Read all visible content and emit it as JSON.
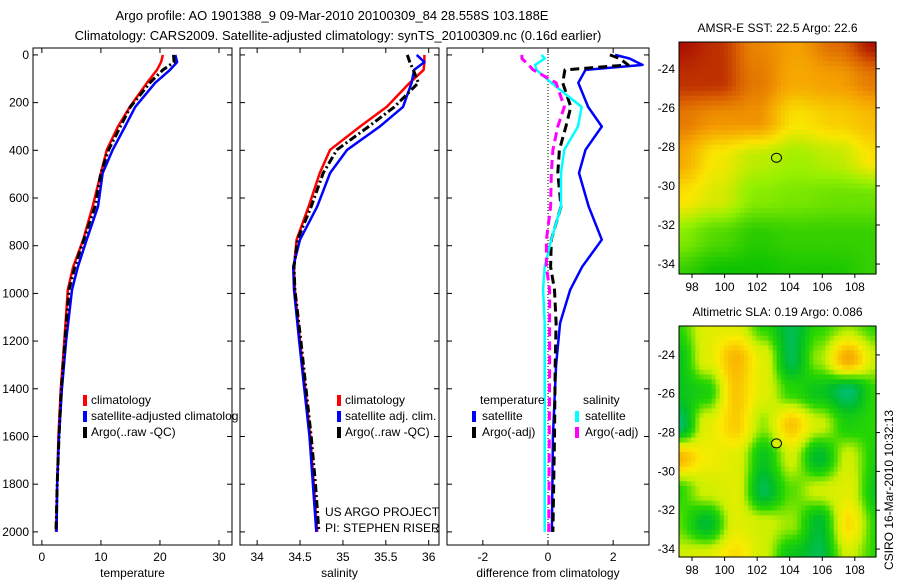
{
  "figure": {
    "title_line1": "Argo profile: AO 1901388_9 09-Mar-2010 20100309_84 28.558S 103.188E",
    "title_line2": "Climatology: CARS2009. Satellite-adjusted climatology: synTS_20100309.nc (0.16d earlier)",
    "side_stamp": "CSIRO 16-Mar-2010 10:32:13",
    "colors": {
      "climatology": "#ff0000",
      "satellite": "#0000ff",
      "argo": "#000000",
      "sal_satellite": "#00ffff",
      "sal_argo": "#ff00ff"
    }
  },
  "chart_data": [
    {
      "type": "line",
      "id": "temperature",
      "xlabel": "temperature",
      "ylabel": "",
      "xlim": [
        -1.5,
        32.2
      ],
      "ylim": [
        2055,
        -29
      ],
      "xticks": [
        0,
        10,
        20,
        30
      ],
      "yticks": [
        0,
        200,
        400,
        600,
        800,
        1000,
        1200,
        1400,
        1600,
        1800,
        2000
      ],
      "show_ytick_labels": true,
      "depth": [
        0,
        30,
        63,
        117,
        218,
        300,
        398,
        495,
        636,
        775,
        888,
        985,
        1200,
        1400,
        1600,
        1800,
        2000
      ],
      "series": [
        {
          "name": "climatology",
          "color": "#ff0000",
          "style": "solid",
          "values": [
            20.5,
            20.2,
            19.5,
            17.8,
            14.9,
            12.9,
            11.0,
            10.0,
            8.6,
            7.0,
            5.3,
            4.4,
            3.8,
            3.2,
            2.8,
            2.6,
            2.4
          ]
        },
        {
          "name": "satellite-adjusted climatology",
          "color": "#0000ff",
          "style": "solid",
          "values": [
            22.6,
            22.9,
            21.7,
            19.2,
            15.8,
            14.1,
            12.0,
            10.3,
            9.5,
            7.6,
            6.1,
            5.1,
            4.1,
            3.4,
            2.9,
            2.6,
            2.5
          ]
        },
        {
          "name": "Argo(..raw -QC)",
          "color": "#000000",
          "style": "dashdot",
          "values": [
            22.3,
            22.4,
            20.5,
            18.3,
            15.0,
            13.3,
            11.3,
            10.0,
            9.0,
            7.1,
            5.6,
            4.6,
            3.9,
            3.3,
            2.9,
            2.6,
            2.4
          ]
        }
      ],
      "legend": {
        "placement": "lower-middle",
        "entries": [
          "climatology",
          "satellite-adjusted climatolog",
          "Argo(..raw -QC)"
        ]
      }
    },
    {
      "type": "line",
      "id": "salinity",
      "xlabel": "salinity",
      "ylabel": "",
      "xlim": [
        33.8,
        36.12
      ],
      "ylim": [
        2055,
        -29
      ],
      "xticks": [
        34,
        34.5,
        35,
        35.5,
        36
      ],
      "yticks": [
        0,
        200,
        400,
        600,
        800,
        1000,
        1200,
        1400,
        1600,
        1800,
        2000
      ],
      "show_ytick_labels": false,
      "depth": [
        0,
        30,
        63,
        117,
        218,
        300,
        398,
        495,
        636,
        775,
        888,
        985,
        1200,
        1400,
        1600,
        1800,
        2000
      ],
      "series": [
        {
          "name": "climatology",
          "color": "#ff0000",
          "style": "solid",
          "values": [
            35.95,
            35.95,
            35.94,
            35.78,
            35.51,
            35.2,
            34.85,
            34.73,
            34.6,
            34.46,
            34.43,
            34.44,
            34.5,
            34.56,
            34.62,
            34.66,
            34.7
          ]
        },
        {
          "name": "satellite adj. clim.",
          "color": "#0000ff",
          "style": "solid",
          "values": [
            35.86,
            35.95,
            35.83,
            35.8,
            35.7,
            35.43,
            35.05,
            34.85,
            34.7,
            34.5,
            34.42,
            34.43,
            34.49,
            34.55,
            34.61,
            34.65,
            34.69
          ]
        },
        {
          "name": "Argo(..raw -QC)",
          "color": "#000000",
          "style": "dashdot",
          "values": [
            35.75,
            35.78,
            35.82,
            35.88,
            35.6,
            35.3,
            34.93,
            34.77,
            34.63,
            34.47,
            34.43,
            34.44,
            34.51,
            34.57,
            34.63,
            34.68,
            34.72
          ]
        }
      ],
      "legend": {
        "placement": "lower-middle",
        "entries": [
          "climatology",
          "satellite adj. clim.",
          "Argo(..raw -QC)"
        ]
      },
      "annotations": [
        "US ARGO PROJECT",
        "PI: STEPHEN RISER"
      ]
    },
    {
      "type": "line",
      "id": "difference",
      "xlabel": "difference from climatology",
      "ylabel": "",
      "xlim": [
        -3.1,
        3.1
      ],
      "ylim": [
        2055,
        -29
      ],
      "xticks": [
        -2,
        0,
        2
      ],
      "yticks": [
        0,
        200,
        400,
        600,
        800,
        1000,
        1200,
        1400,
        1600,
        1800,
        2000
      ],
      "show_ytick_labels": false,
      "depth": [
        0,
        15,
        42,
        63,
        117,
        218,
        300,
        398,
        495,
        636,
        775,
        888,
        985,
        1124,
        1300,
        1600,
        2000
      ],
      "series": [
        {
          "name": "temperature satellite",
          "color": "#0000ff",
          "style": "solid",
          "values": [
            2.06,
            2.5,
            2.9,
            1.15,
            0.93,
            1.23,
            1.65,
            1.15,
            0.95,
            1.25,
            1.65,
            1.05,
            0.68,
            0.37,
            0.25,
            0.15,
            0.12
          ]
        },
        {
          "name": "temperature Argo(-adj)",
          "color": "#000000",
          "style": "dashed",
          "values": [
            1.9,
            2.2,
            2.46,
            0.52,
            0.45,
            0.7,
            0.55,
            0.35,
            0.3,
            0.4,
            0.1,
            0.08,
            0.2,
            0.25,
            0.22,
            0.2,
            0.15
          ]
        },
        {
          "name": "salinity satellite",
          "color": "#00ffff",
          "style": "solid",
          "values": [
            -0.2,
            -0.1,
            -0.4,
            -0.35,
            0.1,
            1.03,
            0.92,
            0.5,
            0.4,
            0.4,
            0.1,
            -0.1,
            -0.15,
            -0.1,
            -0.1,
            -0.1,
            -0.1
          ]
        },
        {
          "name": "salinity Argo(-adj)",
          "color": "#ff00ff",
          "style": "dashed",
          "values": [
            -0.8,
            -0.8,
            -0.6,
            -0.45,
            0.25,
            0.5,
            0.3,
            0.15,
            0.1,
            0.08,
            -0.05,
            -0.05,
            0.05,
            0.05,
            0.05,
            0.04,
            0.02
          ]
        }
      ],
      "legend": {
        "placement": "lower-middle",
        "groups": [
          {
            "title": "temperature",
            "entries": [
              "satellite",
              "Argo(-adj)"
            ]
          },
          {
            "title": "salinity",
            "entries": [
              "satellite",
              "Argo(-adj)"
            ]
          }
        ]
      },
      "zero_line": 0
    },
    {
      "type": "heatmap",
      "id": "sst-map",
      "title": "AMSR-E SST: 22.5 Argo: 22.6",
      "xlim": [
        97.2,
        109.3
      ],
      "ylim": [
        -34.51,
        -22.63
      ],
      "xticks": [
        98,
        100,
        102,
        104,
        106,
        108
      ],
      "yticks": [
        -24,
        -26,
        -28,
        -30,
        -32,
        -34
      ],
      "grid_lon": [
        97.2,
        99.6,
        102.0,
        104.4,
        106.8,
        109.3
      ],
      "grid_lat": [
        -22.6,
        -24.6,
        -26.6,
        -28.6,
        -30.6,
        -32.6,
        -34.5
      ],
      "values": [
        [
          25.0,
          24.8,
          24.2,
          24.0,
          24.4,
          25.0
        ],
        [
          24.8,
          24.8,
          24.3,
          23.9,
          24.0,
          24.3
        ],
        [
          24.3,
          24.1,
          24.1,
          23.3,
          23.5,
          23.7
        ],
        [
          23.9,
          23.2,
          22.8,
          22.6,
          22.8,
          23.3
        ],
        [
          23.3,
          23.0,
          22.4,
          22.3,
          22.2,
          22.2
        ],
        [
          22.4,
          22.0,
          21.7,
          21.8,
          21.8,
          21.8
        ],
        [
          21.8,
          21.5,
          21.5,
          21.6,
          21.6,
          21.8
        ]
      ],
      "color_range": [
        21.4,
        25.1
      ],
      "marker": {
        "lon": 103.188,
        "lat": -28.558,
        "value": 22.6
      }
    },
    {
      "type": "heatmap",
      "id": "sla-map",
      "title": "Altimetric SLA: 0.19 Argo: 0.086",
      "xlim": [
        97.2,
        109.3
      ],
      "ylim": [
        -34.41,
        -22.51
      ],
      "xticks": [
        98,
        100,
        102,
        104,
        106,
        108
      ],
      "yticks": [
        -24,
        -26,
        -28,
        -30,
        -32,
        -34
      ],
      "grid_lon": [
        97.2,
        98.9,
        100.7,
        102.4,
        104.1,
        105.8,
        107.6,
        109.3
      ],
      "grid_lat": [
        -22.5,
        -24.2,
        -25.9,
        -27.6,
        -29.3,
        -31.0,
        -32.7,
        -34.4
      ],
      "values": [
        [
          0.0,
          0.1,
          0.1,
          0.0,
          -0.1,
          0.0,
          0.05,
          0.0
        ],
        [
          -0.05,
          0.1,
          0.2,
          0.1,
          -0.1,
          0.05,
          0.22,
          0.08
        ],
        [
          -0.05,
          -0.02,
          0.18,
          0.1,
          0.0,
          -0.05,
          -0.12,
          0.0
        ],
        [
          -0.12,
          0.1,
          0.17,
          0.05,
          0.18,
          0.08,
          -0.02,
          0.0
        ],
        [
          0.2,
          0.12,
          0.1,
          -0.05,
          0.08,
          -0.08,
          0.08,
          -0.02
        ],
        [
          0.0,
          0.08,
          0.1,
          -0.1,
          0.02,
          0.08,
          0.1,
          -0.05
        ],
        [
          0.02,
          -0.08,
          0.1,
          0.08,
          0.05,
          -0.08,
          0.15,
          0.0
        ],
        [
          0.08,
          0.1,
          0.15,
          0.08,
          -0.05,
          -0.1,
          0.08,
          0.0
        ]
      ],
      "color_range": [
        -0.15,
        0.25
      ],
      "marker": {
        "lon": 103.188,
        "lat": -28.558,
        "value": 0.086
      }
    }
  ]
}
